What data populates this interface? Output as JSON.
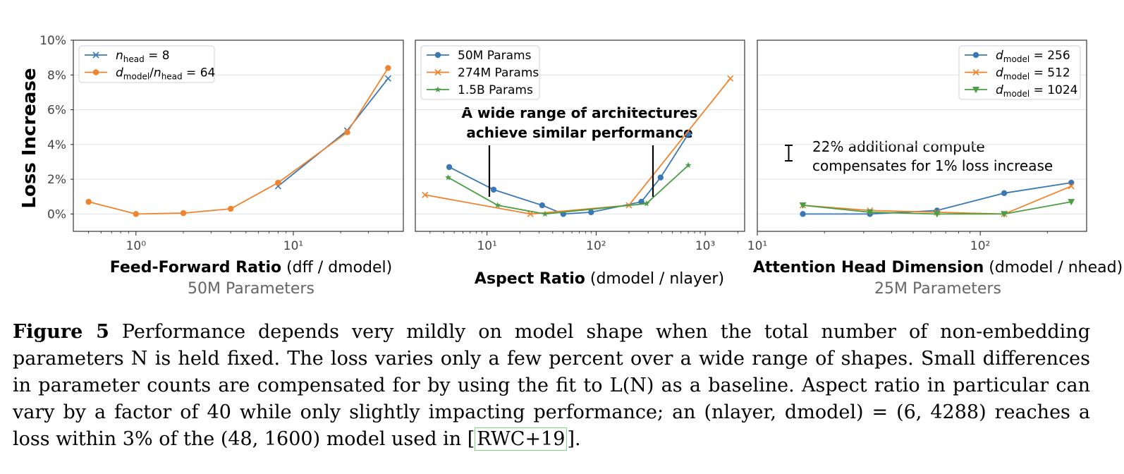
{
  "figure": {
    "caption_label": "Figure 5",
    "caption_text": "Performance depends very mildly on model shape when the total number of non-embedding parameters N is held fixed. The loss varies only a few percent over a wide range of shapes. Small differences in parameter counts are compensated for by using the fit to L(N) as a baseline. Aspect ratio in particular can vary by a factor of 40 while only slightly impacting performance; an (nlayer, dmodel) = (6, 4288) reaches a loss within 3% of the (48, 1600) model used in",
    "caption_cite": "RWC+19",
    "caption_end": "."
  },
  "chart_data": [
    {
      "type": "line",
      "title": "",
      "xlabel": "Feed-Forward Ratio (dff / dmodel)",
      "xlabel_bold": "Feed-Forward Ratio",
      "xlabel_rest": " (dff / dmodel)",
      "subtitle": "50M Parameters",
      "ylabel": "Loss Increase",
      "xscale": "log",
      "xlim": [
        0.4,
        50
      ],
      "ylim": [
        -0.01,
        0.1
      ],
      "yticks": [
        0,
        0.02,
        0.04,
        0.06,
        0.08,
        0.1
      ],
      "ytick_labels": [
        "0%",
        "2%",
        "4%",
        "6%",
        "8%",
        "10%"
      ],
      "xticks": [
        1,
        10
      ],
      "xtick_labels": [
        "10⁰",
        "10¹"
      ],
      "grid": true,
      "legend": "top-left",
      "series": [
        {
          "name": "n_head = 8",
          "color": "#3a78b5",
          "marker": "x",
          "x": [
            8,
            22,
            40
          ],
          "y": [
            0.016,
            0.048,
            0.078
          ]
        },
        {
          "name": "d_model/n_head = 64",
          "color": "#f0832d",
          "marker": "o",
          "x": [
            0.5,
            1,
            2,
            4,
            8,
            22,
            40
          ],
          "y": [
            0.007,
            0.0,
            0.0005,
            0.003,
            0.018,
            0.047,
            0.084
          ]
        }
      ]
    },
    {
      "type": "line",
      "title": "",
      "xlabel": "Aspect Ratio (dmodel / nlayer)",
      "xlabel_bold": "Aspect Ratio",
      "xlabel_rest": " (dmodel / nlayer)",
      "subtitle": "",
      "xscale": "log",
      "xlim": [
        2.2,
        2300
      ],
      "ylim": [
        -0.01,
        0.1
      ],
      "xticks": [
        10,
        100,
        1000
      ],
      "xtick_labels": [
        "10¹",
        "10²",
        "10³"
      ],
      "grid": true,
      "legend": "top-left",
      "annotation": [
        "A wide range of architectures",
        "achieve similar performance"
      ],
      "series": [
        {
          "name": "50M Params",
          "color": "#3a78b5",
          "marker": "o",
          "x": [
            4.5,
            11.5,
            32,
            50,
            90,
            260,
            390,
            700
          ],
          "y": [
            0.027,
            0.014,
            0.005,
            0.0,
            0.001,
            0.007,
            0.021,
            0.046
          ]
        },
        {
          "name": "274M Params",
          "color": "#f0832d",
          "marker": "x",
          "x": [
            2.7,
            25,
            200,
            1700
          ],
          "y": [
            0.011,
            0.0,
            0.005,
            0.078
          ]
        },
        {
          "name": "1.5B Params",
          "color": "#4a9e44",
          "marker": "*",
          "x": [
            4.4,
            12.5,
            34,
            290,
            700
          ],
          "y": [
            0.021,
            0.005,
            0.0,
            0.006,
            0.028
          ]
        }
      ]
    },
    {
      "type": "line",
      "title": "",
      "xlabel": "Attention Head Dimension (dmodel / nhead)",
      "xlabel_bold": "Attention Head Dimension",
      "xlabel_rest": " (dmodel / nhead)",
      "subtitle": "25M Parameters",
      "xscale": "log",
      "xlim": [
        10,
        300
      ],
      "ylim": [
        -0.01,
        0.1
      ],
      "xticks": [
        10,
        100
      ],
      "xtick_labels": [
        "10¹",
        "10²"
      ],
      "grid": true,
      "legend": "top-right",
      "annotation": [
        "22% additional compute",
        "compensates for 1% loss increase"
      ],
      "series": [
        {
          "name": "d_model = 256",
          "color": "#3a78b5",
          "marker": "o",
          "x": [
            16,
            32,
            64,
            128,
            256
          ],
          "y": [
            0.0,
            0.0,
            0.002,
            0.012,
            0.018
          ]
        },
        {
          "name": "d_model = 512",
          "color": "#f0832d",
          "marker": "x",
          "x": [
            16,
            32,
            64,
            128,
            256
          ],
          "y": [
            0.005,
            0.002,
            0.001,
            0.0,
            0.016
          ]
        },
        {
          "name": "d_model = 1024",
          "color": "#4a9e44",
          "marker": "v",
          "x": [
            16,
            32,
            64,
            128,
            256
          ],
          "y": [
            0.005,
            0.001,
            0.0,
            0.0,
            0.007
          ]
        }
      ]
    }
  ]
}
